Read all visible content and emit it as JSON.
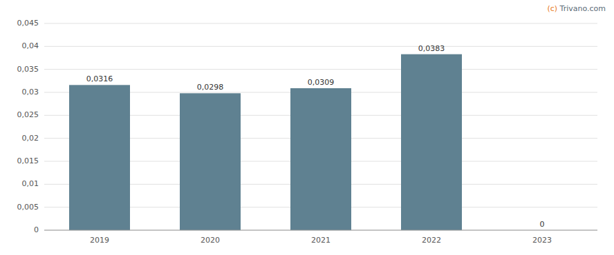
{
  "chart_data": {
    "type": "bar",
    "categories": [
      "2019",
      "2020",
      "2021",
      "2022",
      "2023"
    ],
    "values": [
      0.0316,
      0.0298,
      0.0309,
      0.0383,
      0
    ],
    "value_labels": [
      "0,0316",
      "0,0298",
      "0,0309",
      "0,0383",
      "0"
    ],
    "data_labels": true,
    "color": "#5f8191",
    "ylim": [
      0,
      0.045
    ],
    "yticks": [
      0,
      {
        "value": 0.005,
        "label": "0,005"
      },
      {
        "value": 0.01,
        "label": "0,01"
      },
      {
        "value": 0.015,
        "label": "0,015"
      },
      {
        "value": 0.02,
        "label": "0,02"
      },
      {
        "value": 0.025,
        "label": "0,025"
      },
      {
        "value": 0.03,
        "label": "0,03"
      },
      {
        "value": 0.035,
        "label": "0,035"
      },
      {
        "value": 0.04,
        "label": "0,04"
      },
      {
        "value": 0.045,
        "label": "0,045"
      }
    ],
    "grid": true,
    "annotations": [
      {
        "text": "(c)",
        "color": "#e87722"
      },
      {
        "text": " Trivano.com",
        "color": "#5b6b77"
      }
    ]
  }
}
